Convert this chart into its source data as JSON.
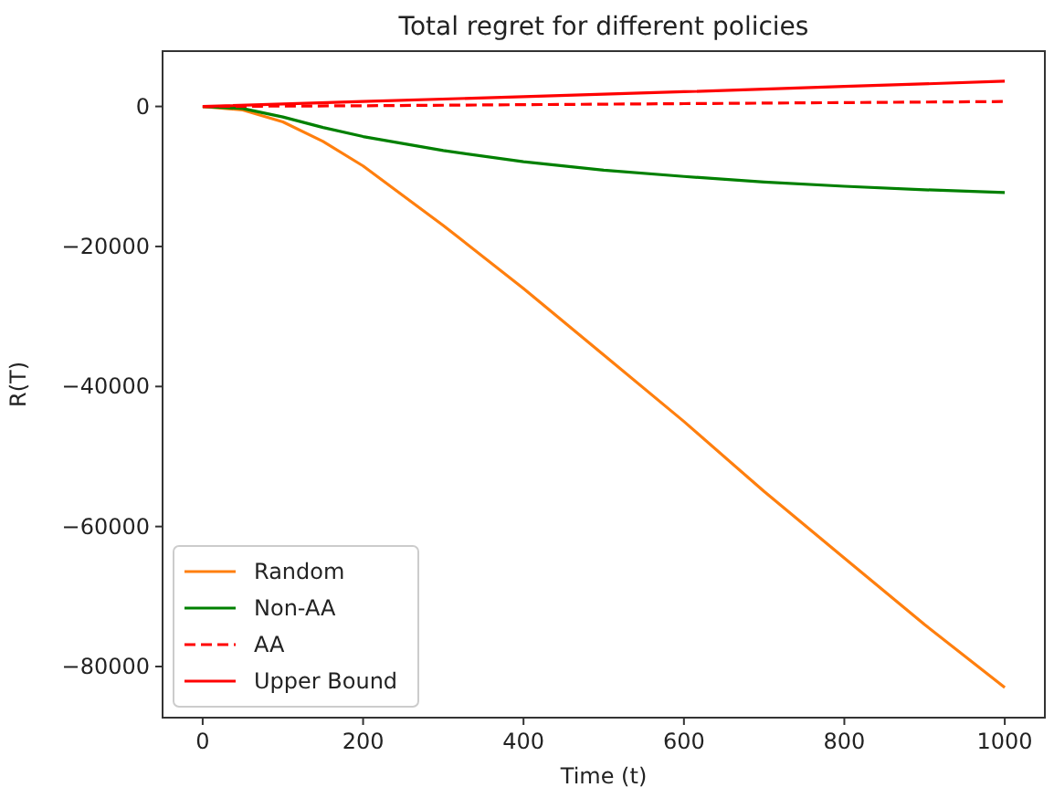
{
  "chart_data": {
    "type": "line",
    "title": "Total regret for different policies",
    "xlabel": "Time (t)",
    "ylabel": "R(T)",
    "xlim": [
      -50,
      1050
    ],
    "xticks": [
      0,
      200,
      400,
      600,
      800,
      1000
    ],
    "ylim": [
      -87300,
      7900
    ],
    "yticks": [
      {
        "value": 0,
        "label": "0"
      },
      {
        "value": -20000,
        "label": "−20000"
      },
      {
        "value": -40000,
        "label": "−40000"
      },
      {
        "value": -60000,
        "label": "−60000"
      },
      {
        "value": -80000,
        "label": "−80000"
      }
    ],
    "legend": "bottom left",
    "grid": false,
    "series": [
      {
        "name": "Random",
        "color": "#ff7f0e",
        "line_style": "solid",
        "x": [
          0,
          50,
          100,
          150,
          200,
          300,
          400,
          500,
          600,
          700,
          800,
          900,
          1000
        ],
        "values": [
          0,
          -500,
          -2200,
          -5000,
          -8500,
          -17000,
          -26000,
          -35500,
          -45000,
          -55000,
          -64500,
          -74000,
          -83000
        ]
      },
      {
        "name": "Non-AA",
        "color": "#008000",
        "line_style": "solid",
        "x": [
          0,
          50,
          100,
          150,
          200,
          300,
          400,
          500,
          600,
          700,
          800,
          900,
          1000
        ],
        "values": [
          0,
          -300,
          -1500,
          -3000,
          -4300,
          -6300,
          -7900,
          -9100,
          -10000,
          -10800,
          -11400,
          -11900,
          -12300
        ]
      },
      {
        "name": "AA",
        "color": "#ff0000",
        "line_style": "dashed",
        "x": [
          0,
          200,
          400,
          600,
          800,
          1000
        ],
        "values": [
          0,
          100,
          250,
          400,
          550,
          700
        ]
      },
      {
        "name": "Upper Bound",
        "color": "#ff0000",
        "line_style": "solid",
        "x": [
          0,
          200,
          400,
          600,
          800,
          1000
        ],
        "values": [
          0,
          700,
          1400,
          2100,
          2850,
          3600
        ]
      }
    ]
  }
}
